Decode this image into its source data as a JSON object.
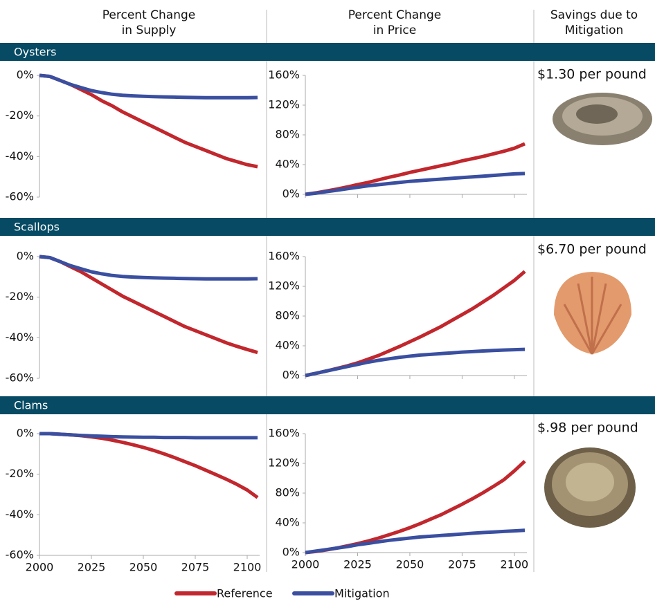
{
  "column_headers": [
    [
      "Percent Change",
      "in Supply"
    ],
    [
      "Percent Change",
      "in Price"
    ],
    [
      "Savings due to",
      "Mitigation"
    ]
  ],
  "sections": [
    {
      "label": "Oysters",
      "savings": "$1.30 per pound"
    },
    {
      "label": "Scallops",
      "savings": "$6.70 per pound"
    },
    {
      "label": "Clams",
      "savings": "$.98 per pound"
    }
  ],
  "chart_data": [
    {
      "type": "line",
      "x": [
        2000,
        2005,
        2010,
        2015,
        2020,
        2025,
        2030,
        2035,
        2040,
        2045,
        2050,
        2055,
        2060,
        2065,
        2070,
        2075,
        2080,
        2085,
        2090,
        2095,
        2100,
        2105
      ],
      "xlim": [
        2000,
        2106
      ],
      "xticks": [
        2000,
        2025,
        2050,
        2075,
        2100
      ],
      "ylim": [
        -60,
        0
      ],
      "yticks": [
        {
          "value": 0,
          "label": "0%"
        },
        {
          "value": -20,
          "label": "-20%"
        },
        {
          "value": -40,
          "label": "-40%"
        },
        {
          "value": -60,
          "label": "-60%"
        }
      ],
      "series": [
        {
          "name": "Reference",
          "color": "#c1272d",
          "values": [
            0,
            -0.5,
            -2.5,
            -4.5,
            -7,
            -9.5,
            -12.5,
            -15,
            -18,
            -20.5,
            -23,
            -25.5,
            -28,
            -30.5,
            -33,
            -35,
            -37,
            -39,
            -41,
            -42.5,
            -44,
            -45
          ]
        },
        {
          "name": "Mitigation",
          "color": "#3a4fa0",
          "values": [
            0,
            -0.5,
            -2.5,
            -4.5,
            -6,
            -7.5,
            -8.5,
            -9.3,
            -9.8,
            -10.1,
            -10.3,
            -10.5,
            -10.6,
            -10.7,
            -10.8,
            -10.9,
            -11,
            -11,
            -11,
            -11,
            -11,
            -10.9
          ]
        }
      ]
    },
    {
      "type": "line",
      "x": [
        2000,
        2005,
        2010,
        2015,
        2020,
        2025,
        2030,
        2035,
        2040,
        2045,
        2050,
        2055,
        2060,
        2065,
        2070,
        2075,
        2080,
        2085,
        2090,
        2095,
        2100,
        2105
      ],
      "xlim": [
        2000,
        2106
      ],
      "xticks": [
        2000,
        2025,
        2050,
        2075,
        2100
      ],
      "ylim": [
        0,
        160
      ],
      "yticks": [
        {
          "value": 0,
          "label": "0%"
        },
        {
          "value": 40,
          "label": "40%"
        },
        {
          "value": 80,
          "label": "80%"
        },
        {
          "value": 120,
          "label": "120%"
        },
        {
          "value": 160,
          "label": "160%"
        }
      ],
      "series": [
        {
          "name": "Reference",
          "color": "#c1272d",
          "values": [
            0,
            2,
            4.5,
            7,
            10,
            13,
            16,
            19.5,
            23,
            26,
            29.5,
            32.5,
            35.5,
            38.5,
            41.5,
            45,
            48,
            51,
            54.5,
            58,
            62,
            68
          ]
        },
        {
          "name": "Mitigation",
          "color": "#3a4fa0",
          "values": [
            0,
            1.5,
            3.5,
            5.5,
            7.5,
            9.5,
            11.5,
            13,
            14.5,
            16,
            17.5,
            18.5,
            19.5,
            20.5,
            21.5,
            22.5,
            23.5,
            24.5,
            25.5,
            26.5,
            27.5,
            28
          ]
        }
      ]
    },
    {
      "type": "line",
      "x": [
        2000,
        2005,
        2010,
        2015,
        2020,
        2025,
        2030,
        2035,
        2040,
        2045,
        2050,
        2055,
        2060,
        2065,
        2070,
        2075,
        2080,
        2085,
        2090,
        2095,
        2100,
        2105
      ],
      "xlim": [
        2000,
        2106
      ],
      "xticks": [
        2000,
        2025,
        2050,
        2075,
        2100
      ],
      "ylim": [
        -60,
        0
      ],
      "yticks": [
        {
          "value": 0,
          "label": "0%"
        },
        {
          "value": -20,
          "label": "-20%"
        },
        {
          "value": -40,
          "label": "-40%"
        },
        {
          "value": -60,
          "label": "-60%"
        }
      ],
      "series": [
        {
          "name": "Reference",
          "color": "#c1272d",
          "values": [
            0,
            -0.5,
            -2.5,
            -5,
            -7.5,
            -10.5,
            -13.5,
            -16.5,
            -19.5,
            -22,
            -24.5,
            -27,
            -29.5,
            -32,
            -34.5,
            -36.5,
            -38.5,
            -40.5,
            -42.5,
            -44.2,
            -45.8,
            -47.3
          ]
        },
        {
          "name": "Mitigation",
          "color": "#3a4fa0",
          "values": [
            0,
            -0.5,
            -2.5,
            -4.5,
            -6,
            -7.5,
            -8.5,
            -9.3,
            -9.8,
            -10.1,
            -10.3,
            -10.5,
            -10.6,
            -10.7,
            -10.8,
            -10.9,
            -11,
            -11,
            -11,
            -11,
            -11,
            -10.9
          ]
        }
      ]
    },
    {
      "type": "line",
      "x": [
        2000,
        2005,
        2010,
        2015,
        2020,
        2025,
        2030,
        2035,
        2040,
        2045,
        2050,
        2055,
        2060,
        2065,
        2070,
        2075,
        2080,
        2085,
        2090,
        2095,
        2100,
        2105
      ],
      "xlim": [
        2000,
        2106
      ],
      "xticks": [
        2000,
        2025,
        2050,
        2075,
        2100
      ],
      "ylim": [
        0,
        160
      ],
      "yticks": [
        {
          "value": 0,
          "label": "0%"
        },
        {
          "value": 40,
          "label": "40%"
        },
        {
          "value": 80,
          "label": "80%"
        },
        {
          "value": 120,
          "label": "120%"
        },
        {
          "value": 160,
          "label": "160%"
        }
      ],
      "series": [
        {
          "name": "Reference",
          "color": "#c1272d",
          "values": [
            0,
            3,
            6,
            9.5,
            13,
            17,
            22,
            27,
            33,
            39,
            45.5,
            52,
            59,
            66,
            74,
            82,
            90,
            99,
            108,
            118,
            128,
            140
          ]
        },
        {
          "name": "Mitigation",
          "color": "#3a4fa0",
          "values": [
            0,
            3,
            6,
            9,
            12,
            15,
            18,
            20.5,
            22.5,
            24.5,
            26,
            27.5,
            28.5,
            29.5,
            30.5,
            31.5,
            32.2,
            33,
            33.7,
            34.3,
            34.8,
            35.3
          ]
        }
      ]
    },
    {
      "type": "line",
      "x": [
        2000,
        2005,
        2010,
        2015,
        2020,
        2025,
        2030,
        2035,
        2040,
        2045,
        2050,
        2055,
        2060,
        2065,
        2070,
        2075,
        2080,
        2085,
        2090,
        2095,
        2100,
        2105
      ],
      "xlim": [
        2000,
        2106
      ],
      "xticks": [
        2000,
        2025,
        2050,
        2075,
        2100
      ],
      "ylim": [
        -60,
        0
      ],
      "yticks": [
        {
          "value": 0,
          "label": "0%"
        },
        {
          "value": -20,
          "label": "-20%"
        },
        {
          "value": -40,
          "label": "-40%"
        },
        {
          "value": -60,
          "label": "-60%"
        }
      ],
      "series": [
        {
          "name": "Reference",
          "color": "#c1272d",
          "values": [
            0,
            0,
            -0.3,
            -0.6,
            -1,
            -1.6,
            -2.3,
            -3.2,
            -4.3,
            -5.5,
            -6.8,
            -8.3,
            -10,
            -11.8,
            -13.8,
            -15.8,
            -18,
            -20.2,
            -22.5,
            -25,
            -27.8,
            -31.5
          ]
        },
        {
          "name": "Mitigation",
          "color": "#3a4fa0",
          "values": [
            0,
            0,
            -0.3,
            -0.6,
            -0.9,
            -1.1,
            -1.3,
            -1.5,
            -1.6,
            -1.7,
            -1.8,
            -1.8,
            -1.9,
            -1.9,
            -1.9,
            -2,
            -2,
            -2,
            -2,
            -2,
            -2,
            -2
          ]
        }
      ]
    },
    {
      "type": "line",
      "x": [
        2000,
        2005,
        2010,
        2015,
        2020,
        2025,
        2030,
        2035,
        2040,
        2045,
        2050,
        2055,
        2060,
        2065,
        2070,
        2075,
        2080,
        2085,
        2090,
        2095,
        2100,
        2105
      ],
      "xlim": [
        2000,
        2106
      ],
      "xticks": [
        2000,
        2025,
        2050,
        2075,
        2100
      ],
      "ylim": [
        0,
        160
      ],
      "yticks": [
        {
          "value": 0,
          "label": "0%"
        },
        {
          "value": 40,
          "label": "40%"
        },
        {
          "value": 80,
          "label": "80%"
        },
        {
          "value": 120,
          "label": "120%"
        },
        {
          "value": 160,
          "label": "160%"
        }
      ],
      "series": [
        {
          "name": "Reference",
          "color": "#c1272d",
          "values": [
            0,
            1.5,
            3.5,
            6,
            9,
            12,
            15.5,
            19.5,
            24,
            28.5,
            33.5,
            39,
            45,
            51,
            58,
            65,
            72.5,
            80.5,
            89,
            98,
            110,
            123
          ]
        },
        {
          "name": "Mitigation",
          "color": "#3a4fa0",
          "values": [
            0,
            2,
            4,
            6,
            8,
            10.5,
            12.5,
            14.5,
            16.5,
            18,
            19.5,
            21,
            22,
            23,
            24,
            25,
            26,
            27,
            27.7,
            28.5,
            29.2,
            30
          ]
        }
      ]
    }
  ]
}
